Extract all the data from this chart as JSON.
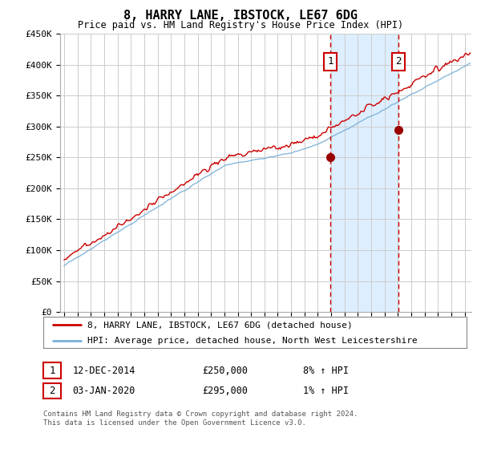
{
  "title": "8, HARRY LANE, IBSTOCK, LE67 6DG",
  "subtitle": "Price paid vs. HM Land Registry's House Price Index (HPI)",
  "ylabel_ticks": [
    "£0",
    "£50K",
    "£100K",
    "£150K",
    "£200K",
    "£250K",
    "£300K",
    "£350K",
    "£400K",
    "£450K"
  ],
  "ytick_values": [
    0,
    50000,
    100000,
    150000,
    200000,
    250000,
    300000,
    350000,
    400000,
    450000
  ],
  "ylim": [
    0,
    450000
  ],
  "xlim_start": 1994.7,
  "xlim_end": 2025.5,
  "hpi_color": "#7ab0d8",
  "price_color": "#cc0000",
  "shade_color": "#ddeeff",
  "vline_color": "#cc0000",
  "point1_x": 2014.95,
  "point1_y": 250000,
  "point2_x": 2020.02,
  "point2_y": 295000,
  "annotation1_label": "1",
  "annotation2_label": "2",
  "legend_line1": "8, HARRY LANE, IBSTOCK, LE67 6DG (detached house)",
  "legend_line2": "HPI: Average price, detached house, North West Leicestershire",
  "table_row1": [
    "1",
    "12-DEC-2014",
    "£250,000",
    "8% ↑ HPI"
  ],
  "table_row2": [
    "2",
    "03-JAN-2020",
    "£295,000",
    "1% ↑ HPI"
  ],
  "footer": "Contains HM Land Registry data © Crown copyright and database right 2024.\nThis data is licensed under the Open Government Licence v3.0.",
  "background_color": "#ffffff",
  "grid_color": "#cccccc"
}
